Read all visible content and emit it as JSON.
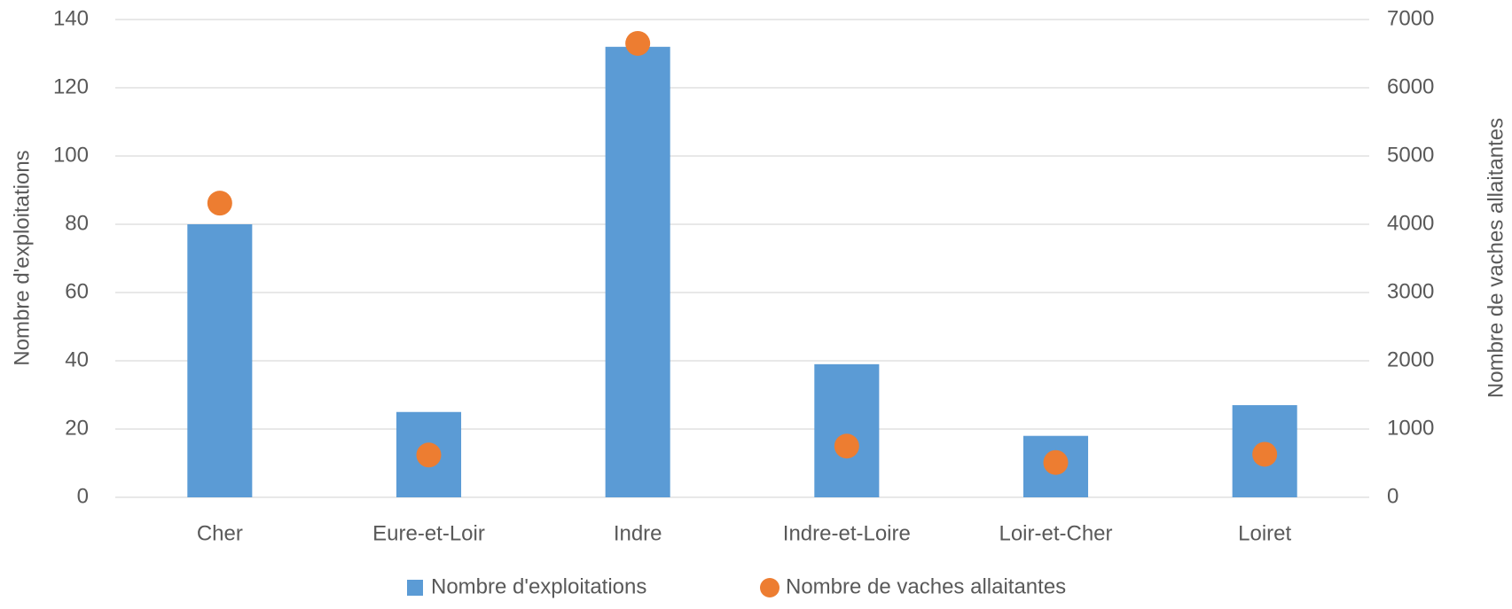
{
  "chart_data": {
    "type": "combo",
    "categories": [
      "Cher",
      "Eure-et-Loir",
      "Indre",
      "Indre-et-Loire",
      "Loir-et-Cher",
      "Loiret"
    ],
    "ylabel": "Nombre d'exploitations",
    "y2label": "Nombre de vaches allaitantes",
    "ylim": [
      0,
      140
    ],
    "yticks": [
      0,
      20,
      40,
      60,
      80,
      100,
      120,
      140
    ],
    "y2lim": [
      0,
      7000
    ],
    "y2ticks": [
      0,
      1000,
      2000,
      3000,
      4000,
      5000,
      6000,
      7000
    ],
    "grid": true,
    "legend": "bottom",
    "series": [
      {
        "name": "Nombre d'exploitations",
        "type": "bar",
        "color": "#5b9bd5",
        "values": [
          80,
          25,
          132,
          39,
          18,
          27
        ]
      },
      {
        "name": "Nombre de vaches allaitantes",
        "type": "scatter",
        "axis": "y2",
        "color": "#ed7d31",
        "values": [
          4310,
          620,
          6650,
          750,
          510,
          630
        ]
      }
    ]
  }
}
